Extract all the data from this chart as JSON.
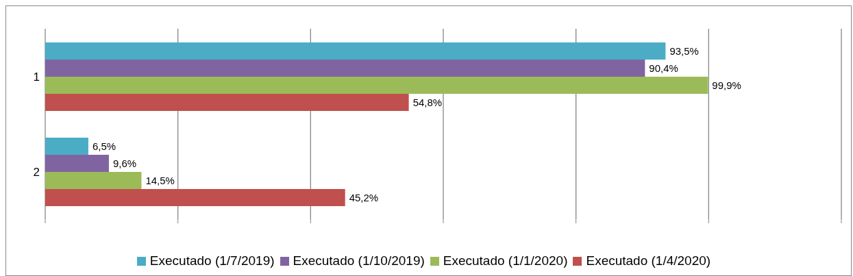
{
  "chart_data": {
    "type": "bar",
    "orientation": "horizontal",
    "categories": [
      "1",
      "2"
    ],
    "series": [
      {
        "name": "Executado (1/7/2019)",
        "color": "#4bacc6",
        "values": [
          93.5,
          6.5
        ],
        "value_labels": [
          "93,5%",
          "6,5%"
        ]
      },
      {
        "name": "Executado (1/10/2019)",
        "color": "#8064a2",
        "values": [
          90.4,
          9.6
        ],
        "value_labels": [
          "90,4%",
          "9,6%"
        ]
      },
      {
        "name": "Executado (1/1/2020)",
        "color": "#9bbb59",
        "values": [
          99.9,
          14.5
        ],
        "value_labels": [
          "99,9%",
          "14,5%"
        ]
      },
      {
        "name": "Executado (1/4/2020)",
        "color": "#c0504d",
        "values": [
          54.8,
          45.2
        ],
        "value_labels": [
          "54,8%",
          "45,2%"
        ]
      }
    ],
    "tick_labels": "y",
    "grid": "x",
    "legend": "bottom"
  }
}
